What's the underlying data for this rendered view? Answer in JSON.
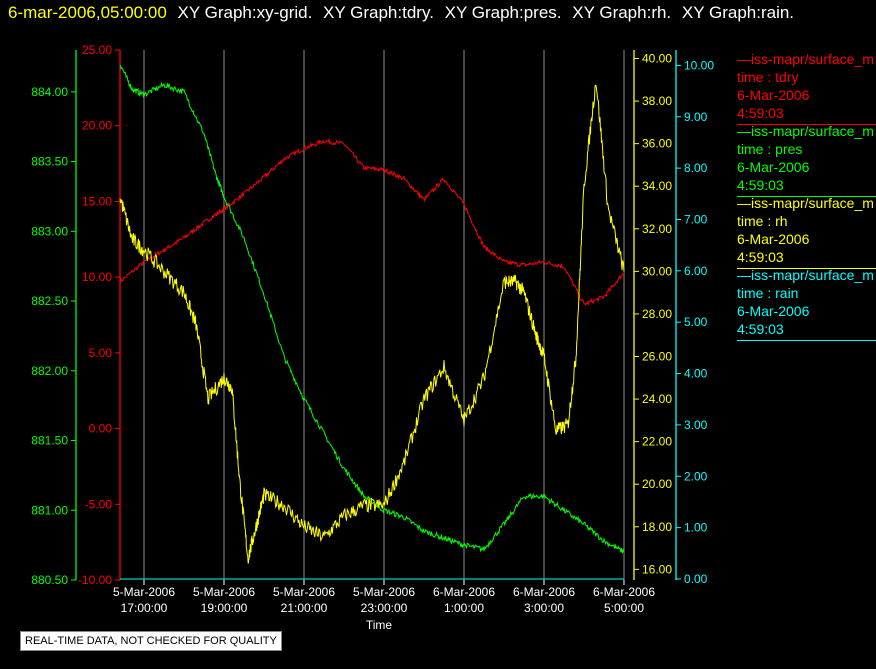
{
  "header": {
    "timestamp": "6-mar-2006,05:00:00",
    "graph_titles": [
      "XY Graph:xy-grid.",
      "XY Graph:tdry.",
      "XY Graph:pres.",
      "XY Graph:rh.",
      "XY Graph:rain."
    ]
  },
  "colors": {
    "tdry": "#ff0000",
    "pres": "#00ff00",
    "rh": "#ffff00",
    "rain": "#00ffff",
    "grid": "#ffffff"
  },
  "legend": [
    {
      "name": "—iss-mapr/surface_m",
      "time_label": "time : tdry",
      "date": "6-Mar-2006",
      "time": "4:59:03"
    },
    {
      "name": "—iss-mapr/surface_m",
      "time_label": "time : pres",
      "date": "6-Mar-2006",
      "time": "4:59:03"
    },
    {
      "name": "—iss-mapr/surface_m",
      "time_label": "time : rh",
      "date": "6-Mar-2006",
      "time": "4:59:03"
    },
    {
      "name": "—iss-mapr/surface_m",
      "time_label": "time : rain",
      "date": "6-Mar-2006",
      "time": "4:59:03"
    }
  ],
  "footer_note": "REAL-TIME DATA, NOT CHECKED FOR QUALITY",
  "chart_data": {
    "type": "line",
    "xlabel": "Time",
    "x_ticks": [
      {
        "date": "5-Mar-2006",
        "time": "17:00:00"
      },
      {
        "date": "5-Mar-2006",
        "time": "19:00:00"
      },
      {
        "date": "5-Mar-2006",
        "time": "21:00:00"
      },
      {
        "date": "5-Mar-2006",
        "time": "23:00:00"
      },
      {
        "date": "6-Mar-2006",
        "time": "1:00:00"
      },
      {
        "date": "6-Mar-2006",
        "time": "3:00:00"
      },
      {
        "date": "6-Mar-2006",
        "time": "5:00:00"
      }
    ],
    "xlim_hours": [
      16.4,
      29.0
    ],
    "axes": {
      "tdry": {
        "range": [
          -10,
          25
        ],
        "ticks": [
          "-10.00",
          "-5.00",
          "0.00",
          "5.00",
          "10.00",
          "15.00",
          "20.00",
          "25.00"
        ]
      },
      "pres": {
        "range": [
          880.5,
          884.3
        ],
        "ticks": [
          "880.50",
          "881.00",
          "881.50",
          "882.00",
          "882.50",
          "883.00",
          "883.50",
          "884.00"
        ]
      },
      "rh": {
        "range": [
          15.5,
          40.4
        ],
        "ticks": [
          "16.00",
          "18.00",
          "20.00",
          "22.00",
          "24.00",
          "26.00",
          "28.00",
          "30.00",
          "32.00",
          "34.00",
          "36.00",
          "38.00",
          "40.00"
        ]
      },
      "rain": {
        "range": [
          -0.02,
          10.3
        ],
        "ticks": [
          "0.00",
          "1.00",
          "2.00",
          "3.00",
          "4.00",
          "5.00",
          "6.00",
          "7.00",
          "8.00",
          "9.00",
          "10.00"
        ]
      }
    },
    "grid": true,
    "series": [
      {
        "key": "tdry",
        "x": [
          16.4,
          17.0,
          17.5,
          18.0,
          18.5,
          19.0,
          19.5,
          20.0,
          20.5,
          21.0,
          21.5,
          22.0,
          22.5,
          23.0,
          23.5,
          24.0,
          24.5,
          25.0,
          25.5,
          26.0,
          26.5,
          27.0,
          27.5,
          28.0,
          28.5,
          29.0
        ],
        "values": [
          9.7,
          11.0,
          11.8,
          12.6,
          13.6,
          14.5,
          15.5,
          16.6,
          17.8,
          18.5,
          19.0,
          18.8,
          17.2,
          17.1,
          16.5,
          15.1,
          16.5,
          14.8,
          12.0,
          11.0,
          10.8,
          11.0,
          10.7,
          8.2,
          8.7,
          10.3
        ]
      },
      {
        "key": "pres",
        "x": [
          16.4,
          16.7,
          17.0,
          17.5,
          18.0,
          18.5,
          18.8,
          19.0,
          19.5,
          20.0,
          20.5,
          21.0,
          21.5,
          22.0,
          22.5,
          23.0,
          23.5,
          24.0,
          24.5,
          25.0,
          25.5,
          26.0,
          26.5,
          27.0,
          27.5,
          28.0,
          28.5,
          29.0
        ],
        "values": [
          884.2,
          884.02,
          883.98,
          884.05,
          884.0,
          883.7,
          883.4,
          883.25,
          882.95,
          882.55,
          882.1,
          881.8,
          881.55,
          881.3,
          881.1,
          881.0,
          880.95,
          880.85,
          880.8,
          880.75,
          880.72,
          880.9,
          881.1,
          881.1,
          881.0,
          880.9,
          880.78,
          880.7
        ]
      },
      {
        "key": "rh",
        "x": [
          16.4,
          16.7,
          17.0,
          17.5,
          18.0,
          18.3,
          18.6,
          19.0,
          19.2,
          19.4,
          19.6,
          19.8,
          20.0,
          20.5,
          21.0,
          21.5,
          22.0,
          22.5,
          23.0,
          23.5,
          24.0,
          24.5,
          25.0,
          25.5,
          26.0,
          26.3,
          26.5,
          26.8,
          27.0,
          27.3,
          27.6,
          27.8,
          28.0,
          28.3,
          28.6,
          29.0
        ],
        "values": [
          33.5,
          31.5,
          31.0,
          30.0,
          29.0,
          27.5,
          24.0,
          25.0,
          24.5,
          20.0,
          16.5,
          18.0,
          19.5,
          19.0,
          18.0,
          17.5,
          18.5,
          19.0,
          19.0,
          21.0,
          24.0,
          25.5,
          23.0,
          25.0,
          29.5,
          29.5,
          29.0,
          27.0,
          26.0,
          22.5,
          22.8,
          26.0,
          34.0,
          39.0,
          33.0,
          30.0
        ]
      },
      {
        "key": "rain",
        "x": [
          16.4,
          29.0
        ],
        "values": [
          0.0,
          0.0
        ]
      }
    ]
  }
}
